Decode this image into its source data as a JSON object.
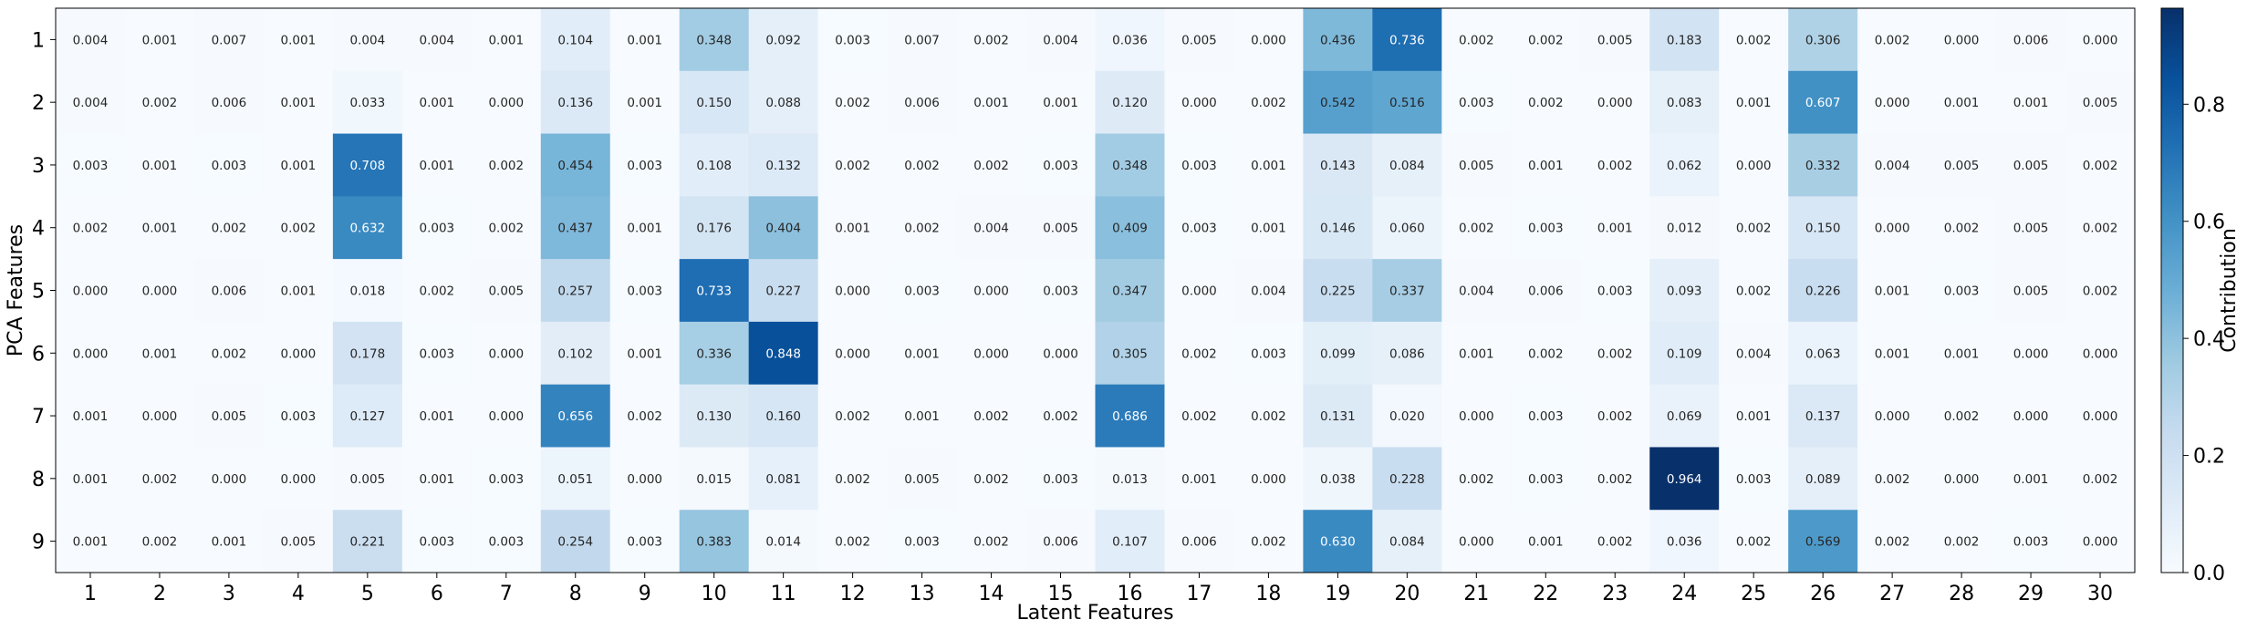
{
  "chart_data": {
    "type": "heatmap",
    "title": "",
    "xlabel": "Latent Features",
    "ylabel": "PCA Features",
    "colorbar_label": "Contribution",
    "colormap": "Blues",
    "vmin": 0.0,
    "vmax": 0.964,
    "colorbar_ticks": [
      "0.0",
      "0.2",
      "0.4",
      "0.6",
      "0.8"
    ],
    "x_ticks": [
      "1",
      "2",
      "3",
      "4",
      "5",
      "6",
      "7",
      "8",
      "9",
      "10",
      "11",
      "12",
      "13",
      "14",
      "15",
      "16",
      "17",
      "18",
      "19",
      "20",
      "21",
      "22",
      "23",
      "24",
      "25",
      "26",
      "27",
      "28",
      "29",
      "30"
    ],
    "y_ticks": [
      "1",
      "2",
      "3",
      "4",
      "5",
      "6",
      "7",
      "8",
      "9"
    ],
    "values": [
      [
        0.004,
        0.001,
        0.007,
        0.001,
        0.004,
        0.004,
        0.001,
        0.104,
        0.001,
        0.348,
        0.092,
        0.003,
        0.007,
        0.002,
        0.004,
        0.036,
        0.005,
        0.0,
        0.436,
        0.736,
        0.002,
        0.002,
        0.005,
        0.183,
        0.002,
        0.306,
        0.002,
        0.0,
        0.006,
        0.0
      ],
      [
        0.004,
        0.002,
        0.006,
        0.001,
        0.033,
        0.001,
        0.0,
        0.136,
        0.001,
        0.15,
        0.088,
        0.002,
        0.006,
        0.001,
        0.001,
        0.12,
        0.0,
        0.002,
        0.542,
        0.516,
        0.003,
        0.002,
        0.0,
        0.083,
        0.001,
        0.607,
        0.0,
        0.001,
        0.001,
        0.005
      ],
      [
        0.003,
        0.001,
        0.003,
        0.001,
        0.708,
        0.001,
        0.002,
        0.454,
        0.003,
        0.108,
        0.132,
        0.002,
        0.002,
        0.002,
        0.003,
        0.348,
        0.003,
        0.001,
        0.143,
        0.084,
        0.005,
        0.001,
        0.002,
        0.062,
        0.0,
        0.332,
        0.004,
        0.005,
        0.005,
        0.002
      ],
      [
        0.002,
        0.001,
        0.002,
        0.002,
        0.632,
        0.003,
        0.002,
        0.437,
        0.001,
        0.176,
        0.404,
        0.001,
        0.002,
        0.004,
        0.005,
        0.409,
        0.003,
        0.001,
        0.146,
        0.06,
        0.002,
        0.003,
        0.001,
        0.012,
        0.002,
        0.15,
        0.0,
        0.002,
        0.005,
        0.002
      ],
      [
        0.0,
        0.0,
        0.006,
        0.001,
        0.018,
        0.002,
        0.005,
        0.257,
        0.003,
        0.733,
        0.227,
        0.0,
        0.003,
        0.0,
        0.003,
        0.347,
        0.0,
        0.004,
        0.225,
        0.337,
        0.004,
        0.006,
        0.003,
        0.093,
        0.002,
        0.226,
        0.001,
        0.003,
        0.005,
        0.002
      ],
      [
        0.0,
        0.001,
        0.002,
        0.0,
        0.178,
        0.003,
        0.0,
        0.102,
        0.001,
        0.336,
        0.848,
        0.0,
        0.001,
        0.0,
        0.0,
        0.305,
        0.002,
        0.003,
        0.099,
        0.086,
        0.001,
        0.002,
        0.002,
        0.109,
        0.004,
        0.063,
        0.001,
        0.001,
        0.0,
        0.0
      ],
      [
        0.001,
        0.0,
        0.005,
        0.003,
        0.127,
        0.001,
        0.0,
        0.656,
        0.002,
        0.13,
        0.16,
        0.002,
        0.001,
        0.002,
        0.002,
        0.686,
        0.002,
        0.002,
        0.131,
        0.02,
        0.0,
        0.003,
        0.002,
        0.069,
        0.001,
        0.137,
        0.0,
        0.002,
        0.0,
        0.0
      ],
      [
        0.001,
        0.002,
        0.0,
        0.0,
        0.005,
        0.001,
        0.003,
        0.051,
        0.0,
        0.015,
        0.081,
        0.002,
        0.005,
        0.002,
        0.003,
        0.013,
        0.001,
        0.0,
        0.038,
        0.228,
        0.002,
        0.003,
        0.002,
        0.964,
        0.003,
        0.089,
        0.002,
        0.0,
        0.001,
        0.002
      ],
      [
        0.001,
        0.002,
        0.001,
        0.005,
        0.221,
        0.003,
        0.003,
        0.254,
        0.003,
        0.383,
        0.014,
        0.002,
        0.003,
        0.002,
        0.006,
        0.107,
        0.006,
        0.002,
        0.63,
        0.084,
        0.0,
        0.001,
        0.002,
        0.036,
        0.002,
        0.569,
        0.002,
        0.002,
        0.003,
        0.0
      ]
    ]
  }
}
